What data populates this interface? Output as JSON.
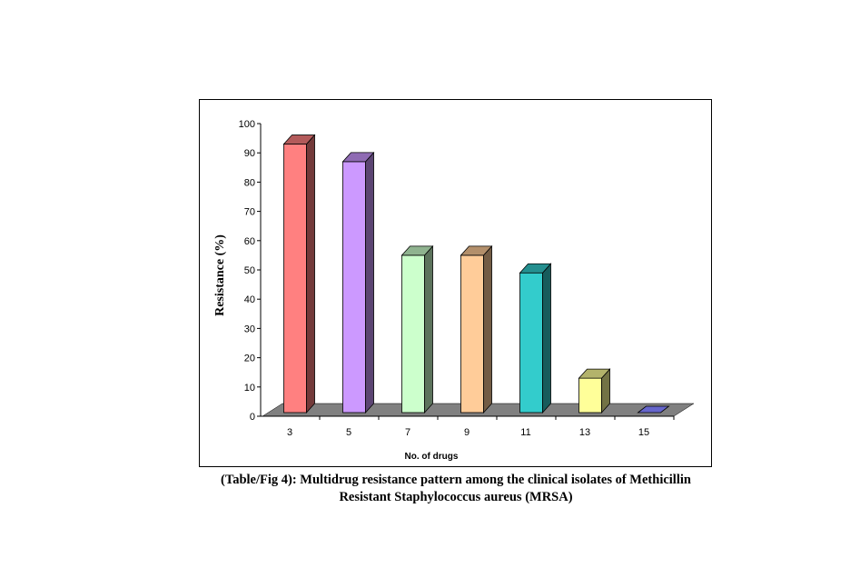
{
  "chart_data": {
    "type": "bar",
    "categories": [
      "3",
      "5",
      "7",
      "9",
      "11",
      "13",
      "15"
    ],
    "values": [
      93,
      87,
      55,
      55,
      49,
      13,
      0
    ],
    "colors": [
      "#ff8080",
      "#cc99ff",
      "#ccffcc",
      "#ffcc99",
      "#33cccc",
      "#ffff99",
      "#6666cc"
    ],
    "ylabel": "Resistance (%)",
    "xlabel": "No. of drugs",
    "ylim": [
      0,
      100
    ],
    "yticks": [
      0,
      10,
      20,
      30,
      40,
      50,
      60,
      70,
      80,
      90,
      100
    ],
    "grid": false,
    "three_d": true,
    "floor_color": "#808080"
  },
  "caption": {
    "line1": "(Table/Fig 4): Multidrug resistance pattern among the clinical isolates of Methicillin",
    "line2": "Resistant Staphylococcus aureus (MRSA)"
  }
}
